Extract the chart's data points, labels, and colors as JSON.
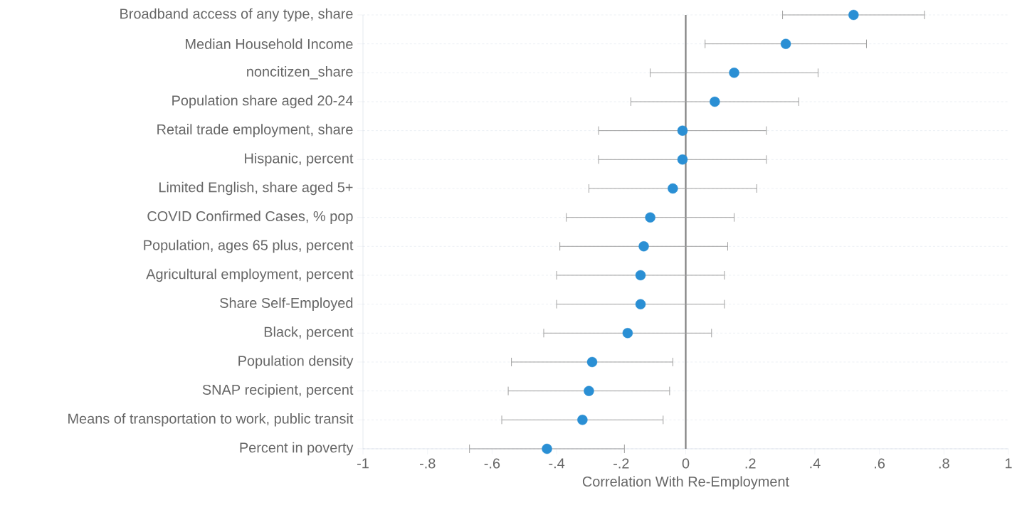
{
  "chart_data": {
    "type": "scatter",
    "orientation": "horizontal",
    "xlabel": "Correlation With Re-Employment",
    "categories": [
      "Broadband access of any type, share",
      "Median Household Income",
      "noncitizen_share",
      "Population share aged 20-24",
      "Retail trade employment, share",
      "Hispanic, percent",
      "Limited English, share aged 5+",
      "COVID Confirmed Cases, % pop",
      "Population, ages 65 plus, percent",
      "Agricultural employment, percent",
      "Share Self-Employed",
      "Black, percent",
      "Population density",
      "SNAP recipient, percent",
      "Means of transportation to work, public transit",
      "Percent in poverty"
    ],
    "values": [
      0.52,
      0.31,
      0.15,
      0.09,
      -0.01,
      -0.01,
      -0.04,
      -0.11,
      -0.13,
      -0.14,
      -0.14,
      -0.18,
      -0.29,
      -0.3,
      -0.32,
      -0.43
    ],
    "errors": [
      0.22,
      0.25,
      0.26,
      0.26,
      0.26,
      0.26,
      0.26,
      0.26,
      0.26,
      0.26,
      0.26,
      0.26,
      0.25,
      0.25,
      0.25,
      0.24
    ],
    "color": "#2a8fd4",
    "marker": "circle",
    "grid": "y",
    "xlim": [
      -1,
      1
    ],
    "xticks": [
      {
        "value": -1,
        "label": "-1"
      },
      {
        "value": -0.8,
        "label": "-.8"
      },
      {
        "value": -0.6,
        "label": "-.6"
      },
      {
        "value": -0.4,
        "label": "-.4"
      },
      {
        "value": -0.2,
        "label": "-.2"
      },
      0,
      {
        "value": 0.2,
        "label": ".2"
      },
      {
        "value": 0.4,
        "label": ".4"
      },
      {
        "value": 0.6,
        "label": ".6"
      },
      {
        "value": 0.8,
        "label": ".8"
      },
      1
    ],
    "ref_lines": [
      {
        "axis": "x",
        "value": 0,
        "color": "#808080"
      }
    ]
  }
}
